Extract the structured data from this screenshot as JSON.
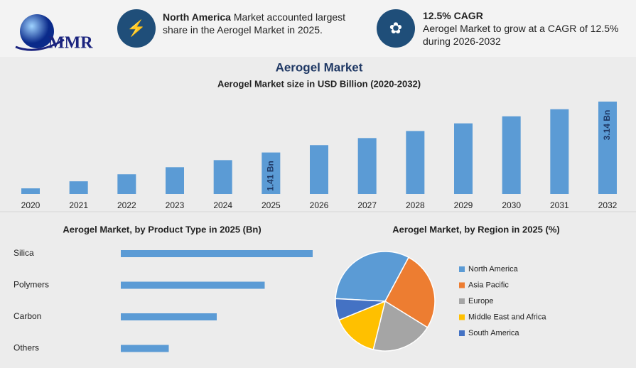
{
  "header": {
    "logo": "MMR",
    "cards": [
      {
        "title": "North America",
        "text": "Market accounted largest share in the Aerogel Market in 2025."
      },
      {
        "title": "12.5% CAGR",
        "text": "Aerogel Market to grow at a CAGR of 12.5% during 2026-2032"
      }
    ]
  },
  "chart_data": [
    {
      "type": "bar",
      "title": "Aerogel Market",
      "subtitle": "Aerogel Market size in USD Billion (2020-2032)",
      "categories": [
        "2020",
        "2021",
        "2022",
        "2023",
        "2024",
        "2025",
        "2026",
        "2027",
        "2028",
        "2029",
        "2030",
        "2031",
        "2032"
      ],
      "values": [
        0.19,
        0.43,
        0.67,
        0.91,
        1.15,
        1.41,
        1.66,
        1.9,
        2.14,
        2.4,
        2.64,
        2.88,
        3.14
      ],
      "value_labels": [
        null,
        null,
        null,
        null,
        null,
        "1.41 Bn",
        null,
        null,
        null,
        null,
        null,
        null,
        "3.14 Bn"
      ],
      "color": "#5b9bd5"
    },
    {
      "type": "hbar",
      "title": "Aerogel Market, by Product Type in 2025 (Bn)",
      "categories": [
        "Silica",
        "Polymers",
        "Carbon",
        "Others"
      ],
      "values": [
        0.56,
        0.42,
        0.28,
        0.14
      ],
      "color": "#5b9bd5"
    },
    {
      "type": "pie",
      "title": "Aerogel Market, by Region in 2025 (%)",
      "series": [
        {
          "name": "North America",
          "color": "#5b9bd5",
          "values": [
            32
          ]
        },
        {
          "name": "Asia Pacific",
          "color": "#ed7d31",
          "values": [
            26
          ]
        },
        {
          "name": "Europe",
          "color": "#a5a5a5",
          "values": [
            20
          ]
        },
        {
          "name": "Middle East and Africa",
          "color": "#ffc000",
          "values": [
            15
          ]
        },
        {
          "name": "South America",
          "color": "#4472c4",
          "values": [
            7
          ]
        }
      ]
    }
  ]
}
